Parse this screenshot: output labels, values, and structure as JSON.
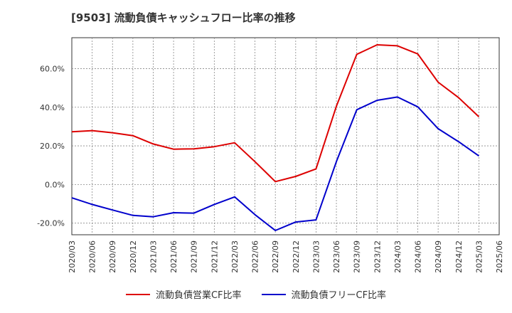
{
  "page_title": "[9503]  流動負債キャッシュフロー比率の推移",
  "colors": {
    "operating": "#dd0000",
    "free": "#0000cc",
    "grid": "#888888",
    "axis": "#333333"
  },
  "chart_data": {
    "type": "line",
    "title": "[9503]  流動負債キャッシュフロー比率の推移",
    "xlabel": "",
    "ylabel": "",
    "ylim": [
      -26,
      76
    ],
    "yticks": [
      -20,
      0,
      20,
      40,
      60
    ],
    "ytick_labels": [
      "-20.0%",
      "0.0%",
      "20.0%",
      "40.0%",
      "60.0%"
    ],
    "grid": true,
    "legend_position": "bottom",
    "categories": [
      "2020/03",
      "2020/06",
      "2020/09",
      "2020/12",
      "2021/03",
      "2021/06",
      "2021/09",
      "2021/12",
      "2022/03",
      "2022/06",
      "2022/09",
      "2022/12",
      "2023/03",
      "2023/06",
      "2023/09",
      "2023/12",
      "2024/03",
      "2024/06",
      "2024/09",
      "2024/12",
      "2025/03",
      "2025/06"
    ],
    "series": [
      {
        "name": "流動負債営業CF比率",
        "color": "#dd0000",
        "values": [
          27.3,
          27.9,
          26.8,
          25.3,
          21.0,
          18.3,
          18.5,
          19.6,
          21.6,
          11.8,
          1.5,
          4.2,
          8.1,
          40.5,
          67.4,
          72.3,
          71.8,
          67.6,
          53.0,
          45.0,
          35.1,
          null
        ]
      },
      {
        "name": "流動負債フリーCF比率",
        "color": "#0000cc",
        "values": [
          -6.9,
          -10.3,
          -13.2,
          -16.0,
          -16.7,
          -14.6,
          -14.8,
          -10.3,
          -6.4,
          -15.6,
          -23.8,
          -19.4,
          -18.3,
          11.8,
          38.7,
          43.6,
          45.3,
          40.2,
          28.9,
          22.2,
          14.8,
          null
        ]
      }
    ]
  }
}
